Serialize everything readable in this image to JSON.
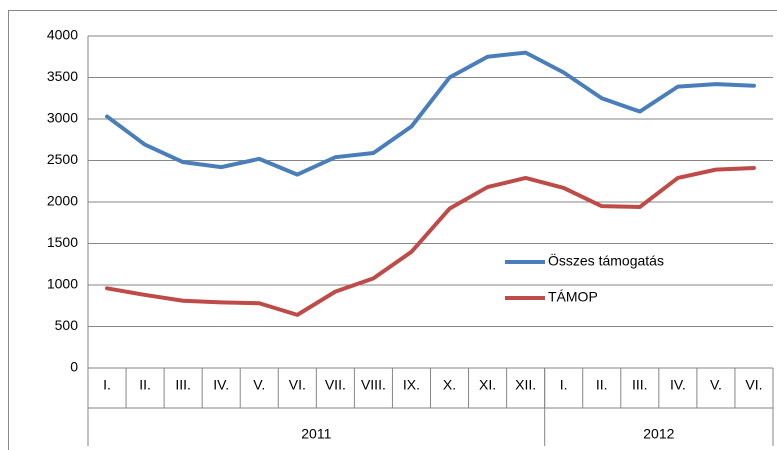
{
  "chart_data": {
    "type": "line",
    "categories": [
      "I.",
      "II.",
      "III.",
      "IV.",
      "V.",
      "VI.",
      "VII.",
      "VIII.",
      "IX.",
      "X.",
      "XI.",
      "XII.",
      "I.",
      "II.",
      "III.",
      "IV.",
      "V.",
      "VI."
    ],
    "groups": [
      {
        "label": "2011",
        "count": 12
      },
      {
        "label": "2012",
        "count": 6
      }
    ],
    "series": [
      {
        "name": "Összes támogatás",
        "color": "#4a7ebb",
        "values": [
          3030,
          2690,
          2480,
          2420,
          2520,
          2330,
          2540,
          2590,
          2910,
          3500,
          3750,
          3800,
          3560,
          3250,
          3090,
          3390,
          3420,
          3400
        ]
      },
      {
        "name": "TÁMOP",
        "color": "#be4b48",
        "values": [
          960,
          880,
          810,
          790,
          780,
          640,
          920,
          1080,
          1400,
          1920,
          2180,
          2290,
          2170,
          1950,
          1940,
          2290,
          2390,
          2410
        ]
      }
    ],
    "ylim": [
      0,
      4000
    ],
    "yticks": [
      0,
      500,
      1000,
      1500,
      2000,
      2500,
      3000,
      3500,
      4000
    ],
    "grid": true
  }
}
